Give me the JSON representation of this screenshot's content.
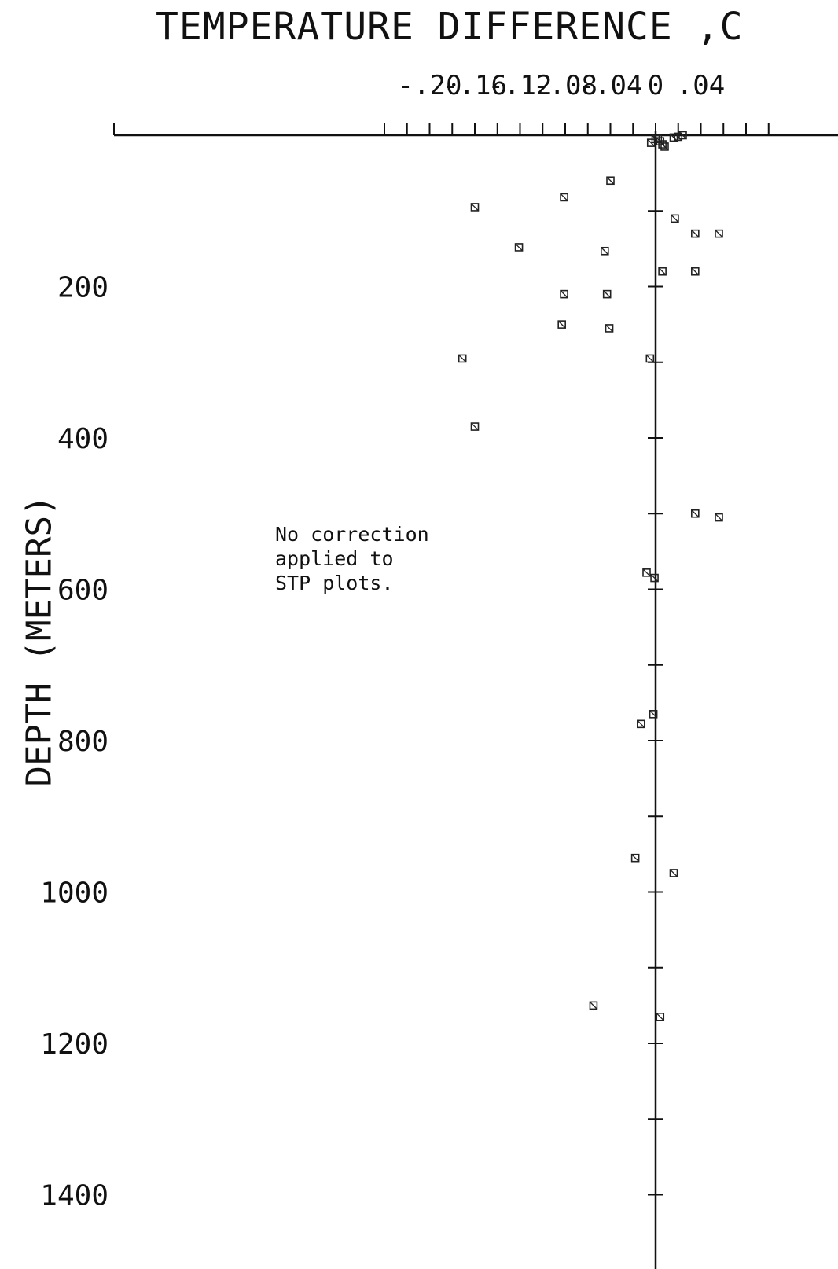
{
  "chart_data": {
    "type": "scatter",
    "title": "TEMPERATURE DIFFERENCE ,C",
    "xlabel": "TEMPERATURE DIFFERENCE ,C",
    "ylabel": "DEPTH (METERS)",
    "x_tick_labels": [
      "-.20",
      "-.16",
      "-.12",
      "-.08",
      "-.04",
      "0",
      ".04"
    ],
    "x_ticks": [
      -0.2,
      -0.16,
      -0.12,
      -0.08,
      -0.04,
      0,
      0.04
    ],
    "y_tick_labels": [
      "200",
      "400",
      "600",
      "800",
      "1000",
      "1200",
      "1400"
    ],
    "y_ticks": [
      200,
      400,
      600,
      800,
      1000,
      1200,
      1400
    ],
    "xlim": [
      -0.24,
      0.08
    ],
    "ylim": [
      0,
      1520
    ],
    "grid": false,
    "annotation": [
      "No correction",
      "applied to",
      "STP plots."
    ],
    "points": [
      {
        "x": -0.004,
        "y": 10
      },
      {
        "x": 0.0,
        "y": 5
      },
      {
        "x": 0.002,
        "y": 5
      },
      {
        "x": 0.004,
        "y": 8
      },
      {
        "x": 0.006,
        "y": 12
      },
      {
        "x": 0.008,
        "y": 15
      },
      {
        "x": 0.016,
        "y": 3
      },
      {
        "x": 0.02,
        "y": 2
      },
      {
        "x": 0.024,
        "y": 0
      },
      {
        "x": -0.04,
        "y": 60
      },
      {
        "x": -0.16,
        "y": 95
      },
      {
        "x": -0.081,
        "y": 82
      },
      {
        "x": 0.017,
        "y": 110
      },
      {
        "x": 0.035,
        "y": 130
      },
      {
        "x": 0.056,
        "y": 130
      },
      {
        "x": -0.121,
        "y": 148
      },
      {
        "x": -0.045,
        "y": 153
      },
      {
        "x": 0.006,
        "y": 180
      },
      {
        "x": 0.035,
        "y": 180
      },
      {
        "x": -0.081,
        "y": 210
      },
      {
        "x": -0.043,
        "y": 210
      },
      {
        "x": -0.083,
        "y": 250
      },
      {
        "x": -0.041,
        "y": 255
      },
      {
        "x": -0.005,
        "y": 295
      },
      {
        "x": -0.171,
        "y": 295
      },
      {
        "x": -0.16,
        "y": 385
      },
      {
        "x": 0.035,
        "y": 500
      },
      {
        "x": 0.056,
        "y": 505
      },
      {
        "x": -0.008,
        "y": 578
      },
      {
        "x": -0.001,
        "y": 585
      },
      {
        "x": -0.002,
        "y": 765
      },
      {
        "x": -0.013,
        "y": 778
      },
      {
        "x": -0.018,
        "y": 955
      },
      {
        "x": 0.016,
        "y": 975
      },
      {
        "x": -0.055,
        "y": 1150
      },
      {
        "x": 0.004,
        "y": 1165
      }
    ]
  }
}
